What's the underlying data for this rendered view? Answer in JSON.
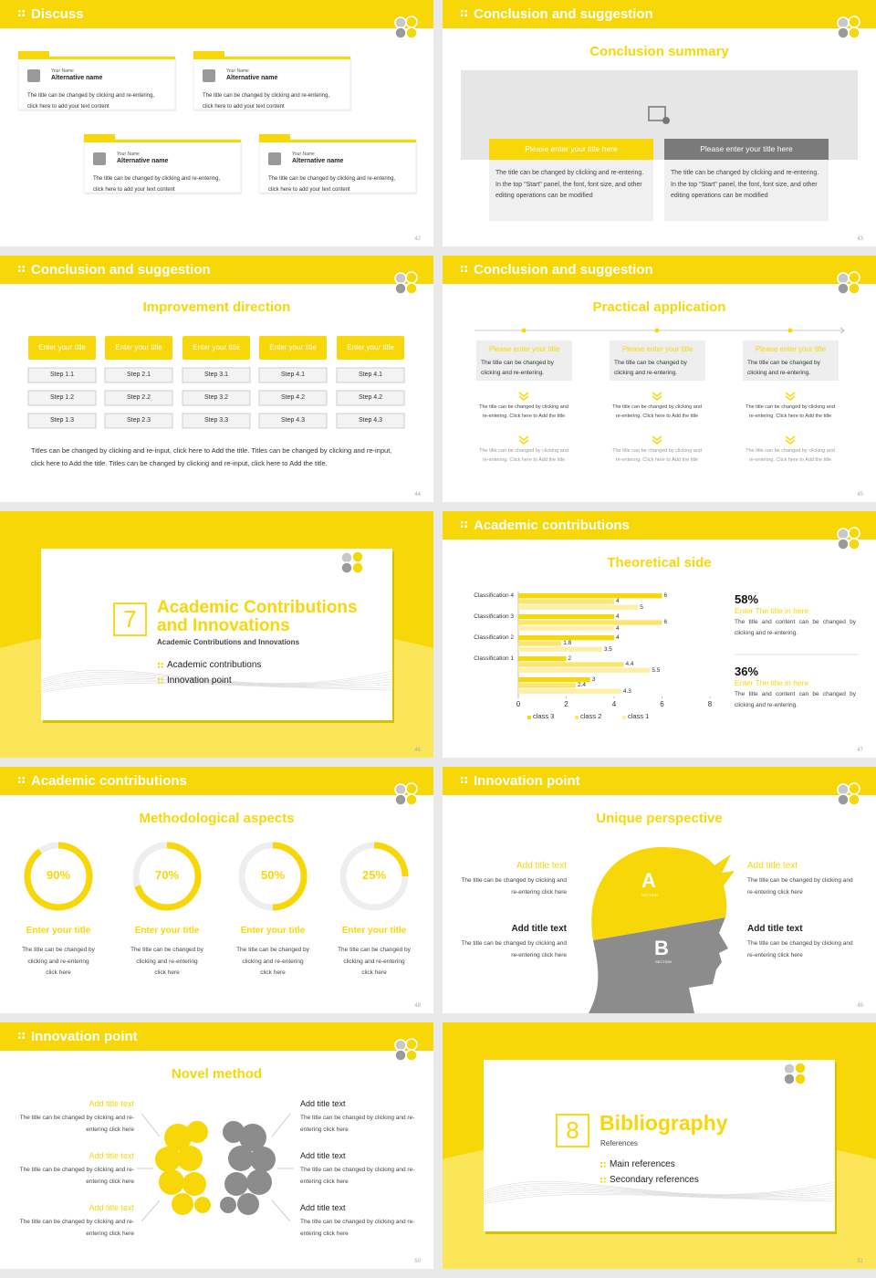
{
  "slides": [
    {
      "number": "42",
      "title": "Discuss",
      "cards": [
        {
          "label": "Your Name",
          "name": "Alternative name",
          "text": "The title can be changed by clicking and re-entering, click here to add your text content"
        },
        {
          "label": "Your Name",
          "name": "Alternative name",
          "text": "The title can be changed by clicking and re-entering, click here to add your text content"
        },
        {
          "label": "Your Name",
          "name": "Alternative name",
          "text": "The title can be changed by clicking and re-entering, click here to add your text content"
        },
        {
          "label": "Your Name",
          "name": "Alternative name",
          "text": "The title can be changed by clicking and re-entering, click here to add your text content"
        }
      ]
    },
    {
      "number": "43",
      "title": "Conclusion and suggestion",
      "subtitle": "Conclusion summary",
      "boxes": [
        {
          "title": "Please enter your title here",
          "text": "The title can be changed by clicking and re-entering. In the top \"Start\" panel, the font, font size, and other editing operations can be modified"
        },
        {
          "title": "Please enter your title here",
          "text": "The title can be changed by clicking and re-entering. In the top \"Start\" panel, the font, font size, and other editing operations can be modified"
        }
      ]
    },
    {
      "number": "44",
      "title": "Conclusion and suggestion",
      "subtitle": "Improvement direction",
      "columns": [
        {
          "title": "Enter your title",
          "steps": [
            "Step 1.1",
            "Step 1.2",
            "Step 1.3"
          ]
        },
        {
          "title": "Enter your title",
          "steps": [
            "Step 2.1",
            "Step 2.2",
            "Step 2.3"
          ]
        },
        {
          "title": "Enter your title",
          "steps": [
            "Step 3.1",
            "Step 3.2",
            "Step 3.3"
          ]
        },
        {
          "title": "Enter your title",
          "steps": [
            "Step 4.1",
            "Step 4.2",
            "Step 4.3"
          ]
        },
        {
          "title": "Enter your title",
          "steps": [
            "Step 4.1",
            "Step 4.2",
            "Step 4.3"
          ]
        }
      ],
      "note": "Titles can be changed by clicking and re-input, click here to Add the title. Titles can be changed by clicking and re-input, click here to Add the title. Titles can be changed by clicking and re-input, click here to Add the title."
    },
    {
      "number": "45",
      "title": "Conclusion and suggestion",
      "subtitle": "Practical application",
      "items": [
        {
          "title": "Please enter your title",
          "text": "The title can be changed by clicking and re-entering.",
          "details": [
            "The title can be changed by clicking and re-entering. Click here to Add the title",
            "The title can be changed by clicking and re-entering. Click here to Add the title"
          ]
        },
        {
          "title": "Please enter your title",
          "text": "The title can be changed by clicking and re-entering.",
          "details": [
            "The title can be changed by clicking and re-entering. Click here to Add the title",
            "The title can be changed by clicking and re-entering. Click here to Add the title"
          ]
        },
        {
          "title": "Please enter your title",
          "text": "The title can be changed by clicking and re-entering.",
          "details": [
            "The title can be changed by clicking and re-entering. Click here to Add the title",
            "The title can be changed by clicking and re-entering. Click here to Add the title"
          ]
        }
      ]
    },
    {
      "number": "46",
      "section": "7",
      "title": "Academic Contributions and Innovations",
      "subtitle": "Academic Contributions and Innovations",
      "items": [
        "Academic contributions",
        "Innovation point"
      ]
    },
    {
      "number": "47",
      "title": "Academic contributions",
      "subtitle": "Theoretical side",
      "stats": [
        {
          "value": "58%",
          "title": "Enter The title in here",
          "text": "The title and content can be changed by clicking and re-entering."
        },
        {
          "value": "36%",
          "title": "Enter The title in here",
          "text": "The title and content can be changed by clicking and re-entering."
        }
      ]
    },
    {
      "number": "48",
      "title": "Academic contributions",
      "subtitle": "Methodological aspects",
      "items": [
        {
          "title": "Enter your title",
          "text": "The title can be changed by clicking and re-entering click here"
        },
        {
          "title": "Enter your title",
          "text": "The title can be changed by clicking and re-entering click here"
        },
        {
          "title": "Enter your title",
          "text": "The title can be changed by clicking and re-entering click here"
        },
        {
          "title": "Enter your title",
          "text": "The title can be changed by clicking and re-entering click here"
        }
      ]
    },
    {
      "number": "49",
      "title": "Innovation point",
      "subtitle": "Unique perspective",
      "head": {
        "top": "A",
        "bottom": "B",
        "caption": "SECTION"
      },
      "items": [
        {
          "title": "Add title text",
          "text": "The title can be changed by clicking and re-entering click here"
        },
        {
          "title": "Add title text",
          "text": "The title can be changed by clicking and re-entering click here"
        },
        {
          "title": "Add title text",
          "text": "The title can be changed by clicking and re-entering click here"
        },
        {
          "title": "Add title text",
          "text": "The title can be changed by clicking and re-entering click here"
        }
      ]
    },
    {
      "number": "50",
      "title": "Innovation point",
      "subtitle": "Novel method",
      "items": [
        {
          "title": "Add title text",
          "text": "The title can be changed by clicking and re-entering click here"
        },
        {
          "title": "Add title text",
          "text": "The title can be changed by clicking and re-entering click here"
        },
        {
          "title": "Add title text",
          "text": "The title can be changed by clicking and re-entering click here"
        },
        {
          "title": "Add title text",
          "text": "The title can be changed by clicking and re-entering click here"
        },
        {
          "title": "Add title text",
          "text": "The title can be changed by clicking and re-entering click here"
        },
        {
          "title": "Add title text",
          "text": "The title can be changed by clicking and re-entering click here"
        }
      ]
    },
    {
      "number": "51",
      "section": "8",
      "title": "Bibliography",
      "subtitle": "References",
      "items": [
        "Main references",
        "Secondary references"
      ]
    }
  ],
  "chart_data": [
    {
      "type": "barh",
      "categories": [
        "Classification 4",
        "Classification 3",
        "Classification 2",
        "Classification 1",
        null
      ],
      "series": [
        {
          "name": "class 3",
          "color": "#f7d708",
          "values": [
            6,
            4,
            4,
            2,
            3
          ]
        },
        {
          "name": "class 2",
          "color": "#fbe56a",
          "values": [
            4,
            6,
            1.8,
            4.4,
            2.4
          ]
        },
        {
          "name": "class 1",
          "color": "#fdf0a6",
          "values": [
            5,
            4,
            3.5,
            5.5,
            4.3
          ]
        }
      ],
      "xlim": [
        0,
        8
      ],
      "xticks": [
        0,
        2,
        4,
        6,
        8
      ],
      "legend": "bottom"
    },
    {
      "type": "donut",
      "values": [
        90,
        70,
        50,
        25
      ],
      "value_labels": [
        "90%",
        "70%",
        "50%",
        "25%"
      ],
      "color": "#f7d708",
      "track_color": "#eeeeee"
    }
  ]
}
